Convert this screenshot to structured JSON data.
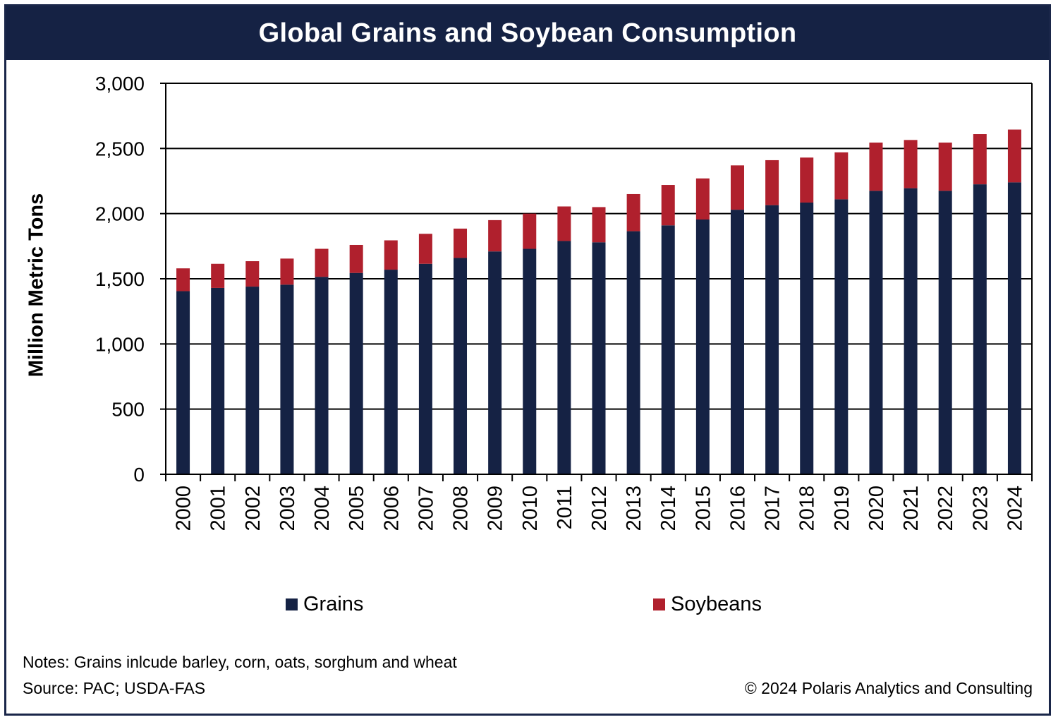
{
  "title": "Global Grains and Soybean Consumption",
  "colors": {
    "header_bg": "#152244",
    "grains": "#152244",
    "soybeans": "#b0202d"
  },
  "chart_data": {
    "type": "bar",
    "stacked": true,
    "ylabel": "Million Metric Tons",
    "ylim": [
      0,
      3000
    ],
    "yticks": [
      "0",
      "500",
      "1,000",
      "1,500",
      "2,000",
      "2,500",
      "3,000"
    ],
    "grid": true,
    "legend_position": "bottom",
    "categories": [
      "2000",
      "2001",
      "2002",
      "2003",
      "2004",
      "2005",
      "2006",
      "2007",
      "2008",
      "2009",
      "2010",
      "2011",
      "2012",
      "2013",
      "2014",
      "2015",
      "2016",
      "2017",
      "2018",
      "2019",
      "2020",
      "2021",
      "2022",
      "2023",
      "2024"
    ],
    "series": [
      {
        "name": "Grains",
        "values": [
          1405,
          1430,
          1440,
          1455,
          1515,
          1545,
          1570,
          1615,
          1660,
          1710,
          1730,
          1790,
          1780,
          1865,
          1910,
          1955,
          2030,
          2065,
          2085,
          2110,
          2175,
          2195,
          2175,
          2225,
          2240
        ]
      },
      {
        "name": "Soybeans",
        "values": [
          175,
          185,
          195,
          200,
          215,
          215,
          225,
          230,
          225,
          240,
          270,
          265,
          270,
          285,
          310,
          315,
          340,
          345,
          345,
          360,
          370,
          370,
          370,
          385,
          405
        ]
      }
    ]
  },
  "notes": "Notes: Grains inlcude barley, corn, oats, sorghum and wheat",
  "source": "Source: PAC; USDA-FAS",
  "copyright": "© 2024 Polaris Analytics and Consulting"
}
